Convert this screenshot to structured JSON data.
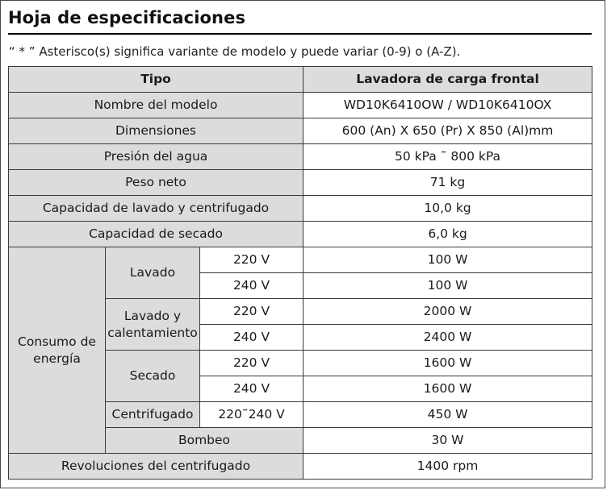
{
  "title": "Hoja de especificaciones",
  "note": "“ * ” Asterisco(s) significa variante de modelo y puede variar (0-9) o (A-Z).",
  "table": {
    "header": {
      "type": "Tipo",
      "value": "Lavadora de carga frontal"
    },
    "simple_rows_top": [
      {
        "label": "Nombre del modelo",
        "value": "WD10K6410OW / WD10K6410OX"
      },
      {
        "label": "Dimensiones",
        "value": "600 (An) X 650 (Pr) X 850 (Al)mm"
      },
      {
        "label": "Presión del agua",
        "value": "50 kPa ˜ 800 kPa"
      },
      {
        "label": "Peso neto",
        "value": "71 kg"
      },
      {
        "label": "Capacidad de lavado y centrifugado",
        "value": "10,0 kg"
      },
      {
        "label": "Capacidad de secado",
        "value": "6,0 kg"
      }
    ],
    "consumo": {
      "label": "Consumo de energía",
      "groups": [
        {
          "name": "Lavado",
          "rows": [
            {
              "voltage": "220 V",
              "value": "100 W"
            },
            {
              "voltage": "240 V",
              "value": "100 W"
            }
          ]
        },
        {
          "name": "Lavado y calentamiento",
          "rows": [
            {
              "voltage": "220 V",
              "value": "2000 W"
            },
            {
              "voltage": "240 V",
              "value": "2400 W"
            }
          ]
        },
        {
          "name": "Secado",
          "rows": [
            {
              "voltage": "220 V",
              "value": "1600 W"
            },
            {
              "voltage": "240 V",
              "value": "1600 W"
            }
          ]
        },
        {
          "name": "Centrifugado",
          "rows": [
            {
              "voltage": "220˜240 V",
              "value": "450 W"
            }
          ]
        }
      ],
      "bombeo": {
        "label": "Bombeo",
        "value": "30 W"
      }
    },
    "final_row": {
      "label": "Revoluciones del centrifugado",
      "value": "1400 rpm"
    }
  }
}
